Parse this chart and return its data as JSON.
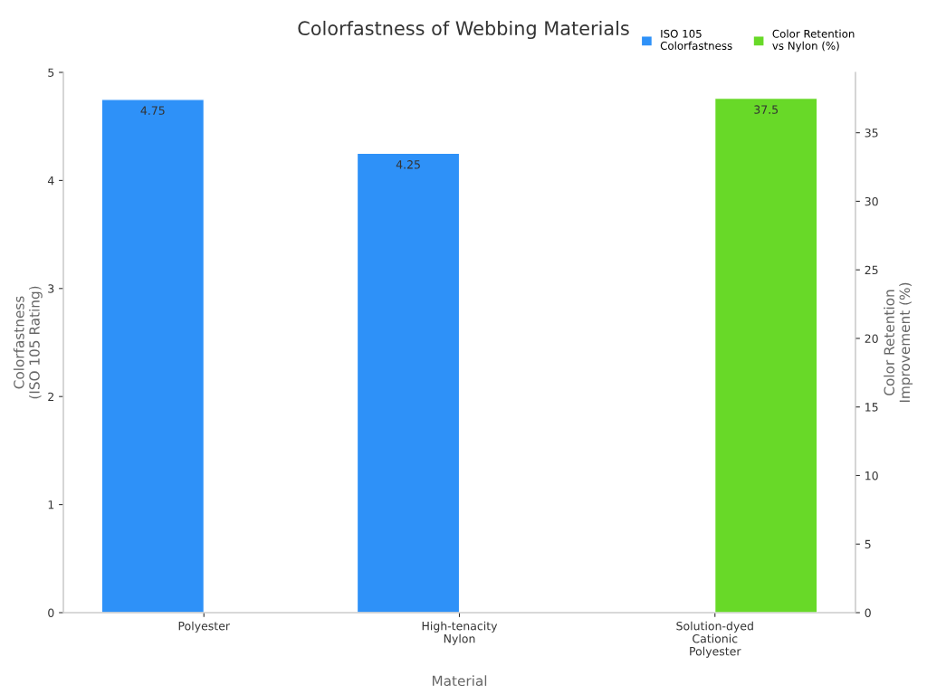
{
  "chart_data": {
    "type": "bar",
    "title": "Colorfastness of Webbing Materials",
    "xlabel": "Material",
    "ylabel": "Colorfastness\n(ISO 105 Rating)",
    "y2label": "Color Retention\nImprovement (%)",
    "categories": [
      "Polyester",
      "High-tenacity\nNylon",
      "Solution-dyed\nCationic\nPolyester"
    ],
    "series": [
      {
        "name": "ISO 105\nColorfastness",
        "color": "#2e91f8",
        "values": [
          4.75,
          4.25,
          null
        ]
      },
      {
        "name": "Color Retention\nvs Nylon (%)",
        "color": "#68d928",
        "values": [
          null,
          null,
          37.5
        ],
        "axis": "y2"
      }
    ],
    "ylim": [
      0,
      5
    ],
    "yticks": [
      0,
      1,
      2,
      3,
      4,
      5
    ],
    "y2lim": [
      0,
      39.4
    ],
    "y2ticks": [
      0,
      5,
      10,
      15,
      20,
      25,
      30,
      35
    ],
    "data_labels": true,
    "grid": false,
    "legend": "top right"
  }
}
